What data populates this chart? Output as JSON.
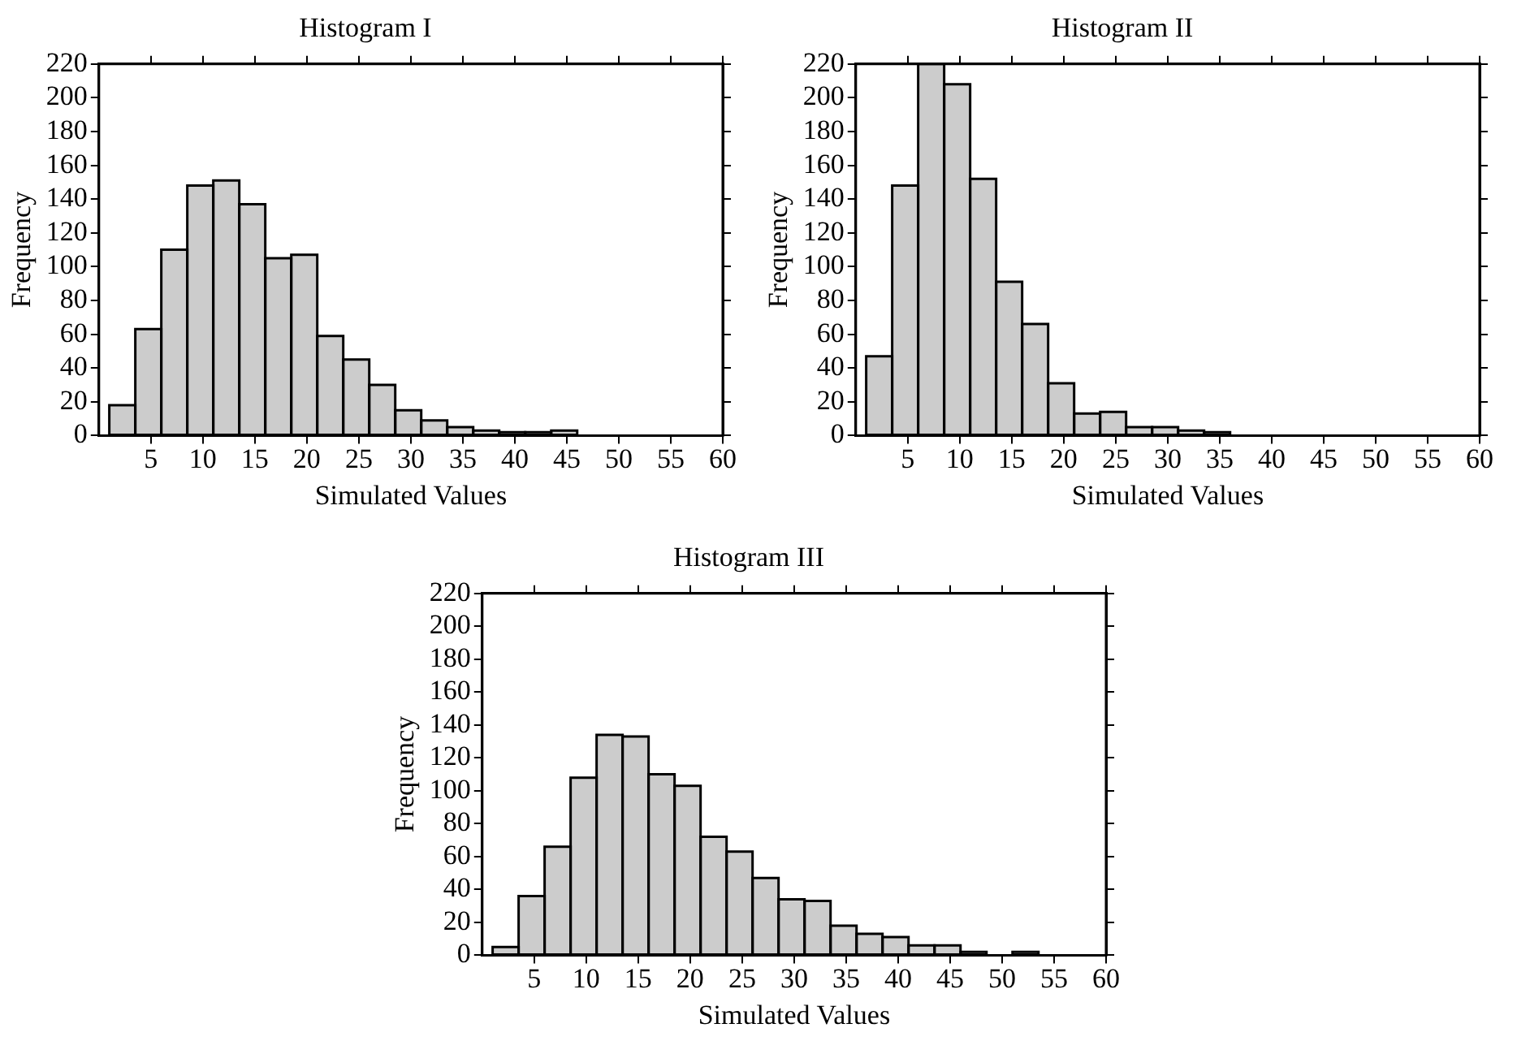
{
  "chart_data": [
    {
      "type": "histogram",
      "title": "Histogram I",
      "xlabel": "Simulated Values",
      "ylabel": "Frequency",
      "color": "#cccccc",
      "bins": [
        1,
        3.5,
        6,
        8.5,
        11,
        13.5,
        16,
        18.5,
        21,
        23.5,
        26,
        28.5,
        31,
        33.5,
        36,
        38.5,
        41,
        43.5,
        46
      ],
      "values": [
        18,
        63,
        110,
        148,
        151,
        137,
        105,
        107,
        59,
        45,
        30,
        15,
        9,
        5,
        3,
        2,
        2,
        3
      ],
      "xlim": [
        0,
        60
      ],
      "xticks": [
        5,
        10,
        15,
        20,
        25,
        30,
        35,
        40,
        45,
        50,
        55,
        60
      ],
      "ylim": [
        0,
        220
      ],
      "yticks": [
        0,
        20,
        40,
        60,
        80,
        100,
        120,
        140,
        160,
        180,
        200,
        220
      ],
      "grid": false
    },
    {
      "type": "histogram",
      "title": "Histogram II",
      "xlabel": "Simulated Values",
      "ylabel": "Frequency",
      "color": "#cccccc",
      "bins": [
        1,
        3.5,
        6,
        8.5,
        11,
        13.5,
        16,
        18.5,
        21,
        23.5,
        26,
        28.5,
        31,
        33.5,
        36
      ],
      "values": [
        47,
        148,
        220,
        208,
        152,
        91,
        66,
        31,
        13,
        14,
        5,
        5,
        3,
        2
      ],
      "xlim": [
        0,
        60
      ],
      "xticks": [
        5,
        10,
        15,
        20,
        25,
        30,
        35,
        40,
        45,
        50,
        55,
        60
      ],
      "ylim": [
        0,
        220
      ],
      "yticks": [
        0,
        20,
        40,
        60,
        80,
        100,
        120,
        140,
        160,
        180,
        200,
        220
      ],
      "grid": false
    },
    {
      "type": "histogram",
      "title": "Histogram III",
      "xlabel": "Simulated Values",
      "ylabel": "Frequency",
      "color": "#cccccc",
      "bins": [
        1,
        3.5,
        6,
        8.5,
        11,
        13.5,
        16,
        18.5,
        21,
        23.5,
        26,
        28.5,
        31,
        33.5,
        36,
        38.5,
        41,
        43.5,
        46,
        48.5,
        51,
        53.5
      ],
      "values": [
        5,
        36,
        66,
        108,
        134,
        133,
        110,
        103,
        72,
        63,
        47,
        34,
        33,
        18,
        13,
        11,
        6,
        6,
        2,
        0,
        2
      ],
      "xlim": [
        0,
        60
      ],
      "xticks": [
        5,
        10,
        15,
        20,
        25,
        30,
        35,
        40,
        45,
        50,
        55,
        60
      ],
      "ylim": [
        0,
        220
      ],
      "yticks": [
        0,
        20,
        40,
        60,
        80,
        100,
        120,
        140,
        160,
        180,
        200,
        220
      ],
      "grid": false
    }
  ]
}
